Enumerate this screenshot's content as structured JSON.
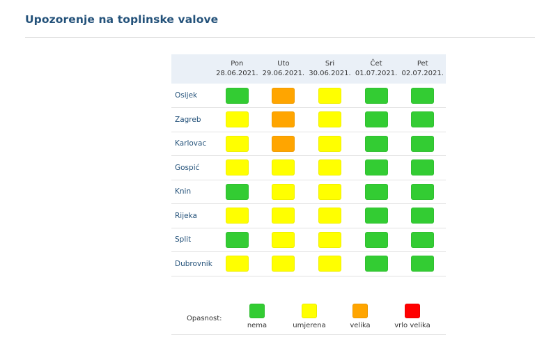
{
  "header": {
    "title": "Upozorenje na toplinske valove"
  },
  "levels": {
    "nema": {
      "label": "nema",
      "color": "#33cc33"
    },
    "umjerena": {
      "label": "umjerena",
      "color": "#ffff00"
    },
    "velika": {
      "label": "velika",
      "color": "#ffa500"
    },
    "vrlo_velika": {
      "label": "vrlo velika",
      "color": "#ff0000"
    }
  },
  "table": {
    "days": [
      {
        "name": "Pon",
        "date": "28.06.2021."
      },
      {
        "name": "Uto",
        "date": "29.06.2021."
      },
      {
        "name": "Sri",
        "date": "30.06.2021."
      },
      {
        "name": "Čet",
        "date": "01.07.2021."
      },
      {
        "name": "Pet",
        "date": "02.07.2021."
      }
    ],
    "rows": [
      {
        "city": "Osijek",
        "levels": [
          "nema",
          "velika",
          "umjerena",
          "nema",
          "nema"
        ]
      },
      {
        "city": "Zagreb",
        "levels": [
          "umjerena",
          "velika",
          "umjerena",
          "nema",
          "nema"
        ]
      },
      {
        "city": "Karlovac",
        "levels": [
          "umjerena",
          "velika",
          "umjerena",
          "nema",
          "nema"
        ]
      },
      {
        "city": "Gospić",
        "levels": [
          "umjerena",
          "umjerena",
          "umjerena",
          "nema",
          "nema"
        ]
      },
      {
        "city": "Knin",
        "levels": [
          "nema",
          "umjerena",
          "umjerena",
          "nema",
          "nema"
        ]
      },
      {
        "city": "Rijeka",
        "levels": [
          "umjerena",
          "umjerena",
          "umjerena",
          "nema",
          "nema"
        ]
      },
      {
        "city": "Split",
        "levels": [
          "nema",
          "umjerena",
          "umjerena",
          "nema",
          "nema"
        ]
      },
      {
        "city": "Dubrovnik",
        "levels": [
          "umjerena",
          "umjerena",
          "umjerena",
          "nema",
          "nema"
        ]
      }
    ]
  },
  "legend": {
    "label": "Opasnost:",
    "items": [
      "nema",
      "umjerena",
      "velika",
      "vrlo_velika"
    ]
  }
}
